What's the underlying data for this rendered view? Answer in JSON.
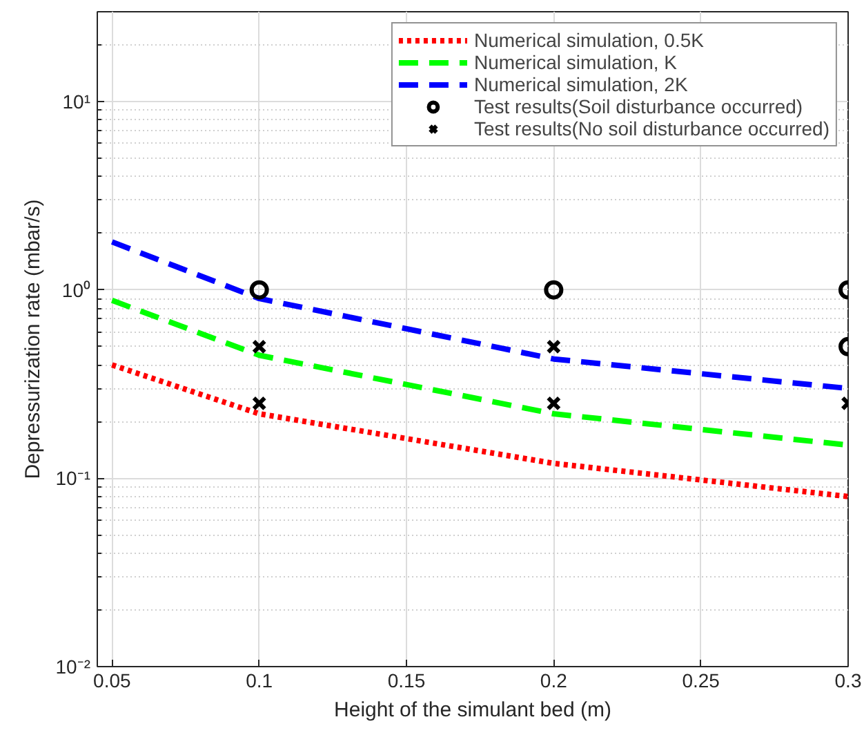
{
  "chart_data": {
    "type": "line",
    "xlabel": "Height of the simulant bed (m)",
    "ylabel": "Depressurization rate (mbar/s)",
    "log": "y",
    "grid": true,
    "legend": "top right",
    "xlim": [
      0.045,
      0.3
    ],
    "xticks": [
      0.05,
      0.1,
      0.15,
      0.2,
      0.25,
      {
        "value": 0.3,
        "label": "0.3"
      }
    ],
    "ylim": [
      0.01,
      30
    ],
    "yticks": [
      {
        "value": 0.01,
        "label": "10⁻²"
      },
      {
        "value": 0.1,
        "label": "10⁻¹"
      },
      {
        "value": 1,
        "label": "10⁰"
      },
      {
        "value": 10,
        "label": "10¹"
      }
    ],
    "series": [
      {
        "name": "Numerical simulation, 0.5K",
        "color": "#ff0000",
        "line_style": "dotted",
        "marker": "none",
        "x": [
          0.05,
          0.1,
          0.2,
          0.3
        ],
        "values": [
          0.4,
          0.22,
          0.12,
          0.08
        ]
      },
      {
        "name": "Numerical simulation, K",
        "color": "#00ff00",
        "line_style": "dashed",
        "marker": "none",
        "x": [
          0.05,
          0.1,
          0.2,
          0.3
        ],
        "values": [
          0.88,
          0.45,
          0.22,
          0.15
        ]
      },
      {
        "name": "Numerical simulation, 2K",
        "color": "#0000ff",
        "line_style": "dashed",
        "marker": "none",
        "x": [
          0.05,
          0.1,
          0.2,
          0.3
        ],
        "values": [
          1.8,
          0.9,
          0.43,
          0.3
        ]
      },
      {
        "name": "Test results(Soil disturbance occurred)",
        "color": "#000000",
        "type": "scatter",
        "marker": "circle",
        "x": [
          0.1,
          0.2,
          0.3,
          0.3
        ],
        "values": [
          1,
          1,
          1,
          0.5
        ]
      },
      {
        "name": "Test results(No soil disturbance occurred)",
        "color": "#000000",
        "type": "scatter",
        "marker": "cross",
        "x": [
          0.1,
          0.1,
          0.2,
          0.2,
          0.3
        ],
        "values": [
          0.5,
          0.25,
          0.5,
          0.25,
          0.25
        ]
      }
    ]
  }
}
